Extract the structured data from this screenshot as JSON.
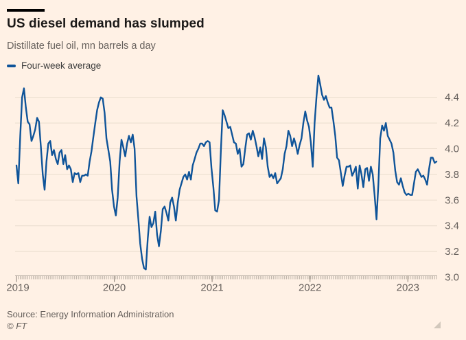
{
  "header": {
    "title": "US diesel demand has slumped",
    "subtitle": "Distillate fuel oil, mn barrels a day"
  },
  "legend": {
    "label": "Four-week average",
    "swatch_color": "#0F5499"
  },
  "footer": {
    "source": "Source: Energy Information Administration",
    "copyright": "© FT"
  },
  "colors": {
    "background": "#FFF1E5",
    "line": "#0F5499",
    "grid": "#E9DCCD",
    "tick": "#B9B0A5",
    "year_tick": "#9A9085",
    "axis_label": "#66605C",
    "title_text": "#1A1817",
    "secondary_text": "#66605C",
    "top_rule": "#000000",
    "resize_handle": "#D2C8BC"
  },
  "chart_data": {
    "type": "line",
    "title": "US diesel demand has slumped",
    "subtitle": "Distillate fuel oil, mn barrels a day",
    "xlabel": "",
    "ylabel": "mn barrels a day",
    "grid": true,
    "legend_position": "top-left",
    "x_axis": {
      "tick_labels": [
        "2019",
        "2020",
        "2021",
        "2022",
        "2023"
      ],
      "sampling": "weekly",
      "points_per_year": 52.18,
      "start": "2019-01",
      "end": "2023-04"
    },
    "y_axis": {
      "ticks": [
        3.0,
        3.2,
        3.4,
        3.6,
        3.8,
        4.0,
        4.2,
        4.4
      ],
      "range": [
        3.0,
        4.65
      ],
      "label_side": "right"
    },
    "series": [
      {
        "name": "Four-week average",
        "color": "#0F5499",
        "values": [
          3.87,
          3.73,
          4.1,
          4.4,
          4.47,
          4.32,
          4.21,
          4.19,
          4.06,
          4.1,
          4.15,
          4.24,
          4.21,
          4.02,
          3.8,
          3.68,
          3.9,
          4.04,
          4.06,
          3.95,
          3.99,
          3.92,
          3.88,
          3.97,
          3.99,
          3.88,
          3.95,
          3.84,
          3.87,
          3.84,
          3.74,
          3.81,
          3.8,
          3.81,
          3.74,
          3.79,
          3.79,
          3.8,
          3.79,
          3.9,
          3.98,
          4.09,
          4.2,
          4.3,
          4.36,
          4.4,
          4.39,
          4.28,
          4.08,
          3.99,
          3.9,
          3.68,
          3.55,
          3.48,
          3.62,
          3.9,
          4.07,
          4.01,
          3.94,
          4.04,
          4.1,
          4.05,
          4.11,
          4.0,
          3.63,
          3.45,
          3.26,
          3.14,
          3.07,
          3.06,
          3.3,
          3.47,
          3.39,
          3.42,
          3.51,
          3.33,
          3.24,
          3.36,
          3.53,
          3.55,
          3.5,
          3.44,
          3.58,
          3.62,
          3.55,
          3.44,
          3.58,
          3.68,
          3.73,
          3.78,
          3.8,
          3.76,
          3.82,
          3.76,
          3.87,
          3.92,
          3.97,
          4.0,
          4.04,
          4.04,
          4.02,
          4.05,
          4.06,
          4.05,
          3.85,
          3.7,
          3.52,
          3.51,
          3.6,
          3.98,
          4.3,
          4.26,
          4.21,
          4.16,
          4.17,
          4.11,
          4.05,
          4.04,
          3.96,
          4.0,
          3.86,
          3.88,
          4.0,
          4.11,
          4.12,
          4.07,
          4.14,
          4.09,
          4.02,
          3.94,
          4.01,
          3.92,
          4.08,
          4.01,
          3.86,
          3.78,
          3.8,
          3.77,
          3.81,
          3.73,
          3.75,
          3.77,
          3.84,
          3.96,
          4.02,
          4.14,
          4.1,
          4.02,
          4.08,
          4.03,
          3.96,
          4.03,
          4.08,
          4.2,
          4.29,
          4.22,
          4.17,
          4.05,
          3.86,
          4.2,
          4.4,
          4.57,
          4.5,
          4.42,
          4.38,
          4.41,
          4.36,
          4.32,
          4.32,
          4.22,
          4.1,
          3.93,
          3.91,
          3.81,
          3.71,
          3.79,
          3.86,
          3.86,
          3.87,
          3.79,
          3.82,
          3.86,
          3.69,
          3.87,
          3.8,
          3.7,
          3.84,
          3.85,
          3.75,
          3.86,
          3.8,
          3.64,
          3.45,
          3.72,
          4.08,
          4.18,
          4.14,
          4.2,
          4.1,
          4.07,
          4.04,
          3.97,
          3.83,
          3.74,
          3.72,
          3.77,
          3.71,
          3.66,
          3.64,
          3.65,
          3.64,
          3.64,
          3.73,
          3.82,
          3.84,
          3.81,
          3.78,
          3.79,
          3.76,
          3.72,
          3.84,
          3.93,
          3.93,
          3.89,
          3.9
        ]
      }
    ]
  }
}
